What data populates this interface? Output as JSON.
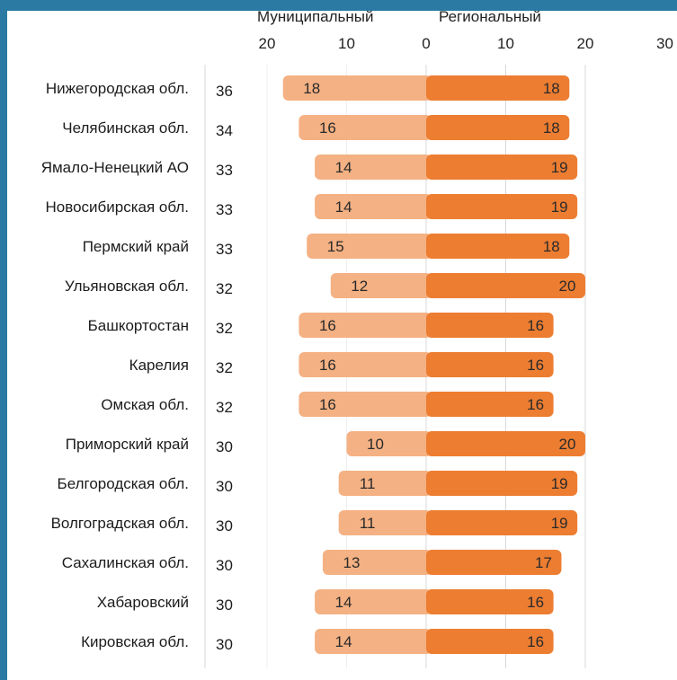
{
  "colors": {
    "frame": "#2a7aa3",
    "municipal": "#f4b183",
    "regional": "#ed7d31",
    "grid": "#d9d9d9"
  },
  "chart_data": {
    "type": "bar",
    "orientation": "horizontal-diverging",
    "headers": {
      "left": "Муниципальный",
      "right": "Региональный"
    },
    "left_ticks": [
      "20",
      "10",
      "0"
    ],
    "right_ticks": [
      "10",
      "20",
      "30"
    ],
    "xlim_left": [
      0,
      20
    ],
    "xlim_right": [
      0,
      30
    ],
    "grid": true,
    "categories": [
      "Нижегородская обл.",
      "Челябинская обл.",
      "Ямало-Ненецкий АО",
      "Новосибирская обл.",
      "Пермский край",
      "Ульяновская обл.",
      "Башкортостан",
      "Карелия",
      "Омская обл.",
      "Приморский край",
      "Белгородская обл.",
      "Волгоградская обл.",
      "Сахалинская обл.",
      "Хабаровский",
      "Кировская обл."
    ],
    "totals": [
      36,
      34,
      33,
      33,
      33,
      32,
      32,
      32,
      32,
      30,
      30,
      30,
      30,
      30,
      30
    ],
    "series": [
      {
        "name": "Муниципальный",
        "values": [
          18,
          16,
          14,
          14,
          15,
          12,
          16,
          16,
          16,
          10,
          11,
          11,
          13,
          14,
          14
        ]
      },
      {
        "name": "Региональный",
        "values": [
          18,
          18,
          19,
          19,
          18,
          20,
          16,
          16,
          16,
          20,
          19,
          19,
          17,
          16,
          16
        ]
      }
    ]
  }
}
